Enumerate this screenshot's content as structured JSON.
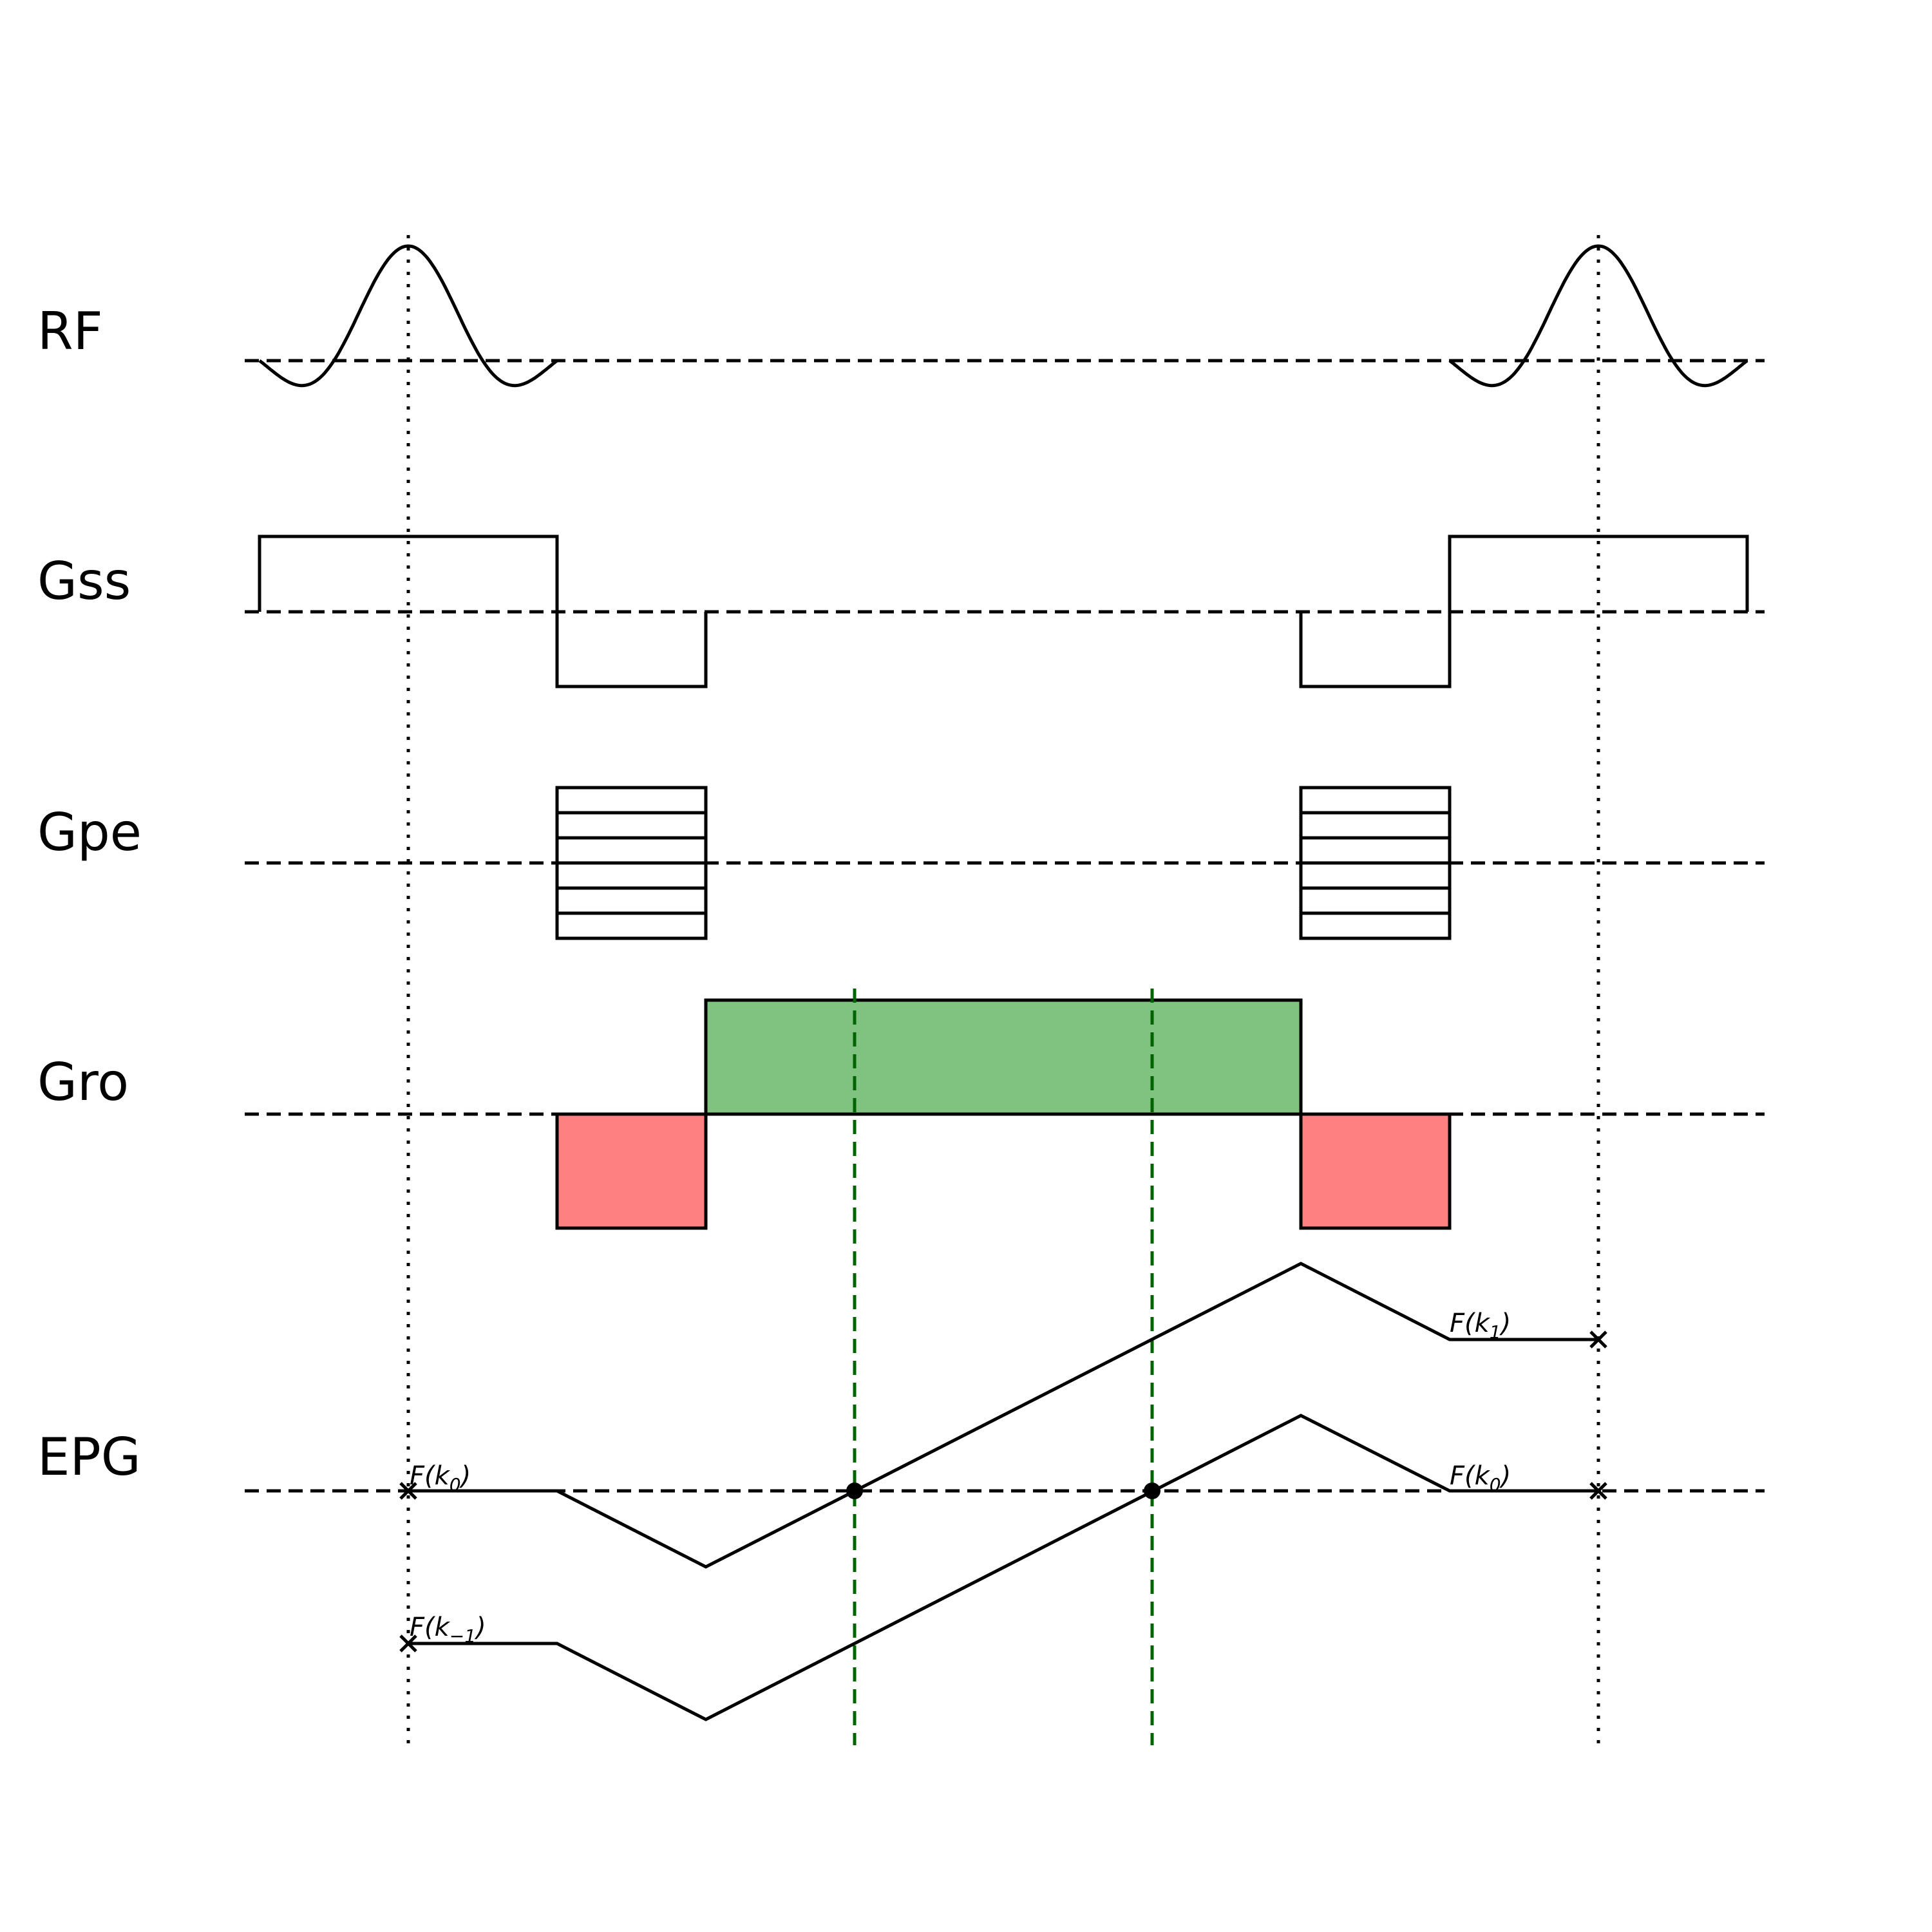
{
  "rows": {
    "rf": "RF",
    "gss": "Gss",
    "gpe": "Gpe",
    "gro": "Gro",
    "epg": "EPG"
  },
  "states": {
    "f_k0_start": {
      "base": "F(k",
      "sub": "0",
      "close": ")"
    },
    "f_k_minus1": {
      "base": "F(k",
      "sub": "−1",
      "close": ")"
    },
    "f_k1_end": {
      "base": "F(k",
      "sub": "1",
      "close": ")"
    },
    "f_k0_end": {
      "base": "F(k",
      "sub": "0",
      "close": ")"
    }
  },
  "colors": {
    "trace": "#000000",
    "readout_fill": "#80c280",
    "prephaser_fill": "#ff8080",
    "echo_marker": "#006400"
  },
  "phase_encode_steps": 6
}
